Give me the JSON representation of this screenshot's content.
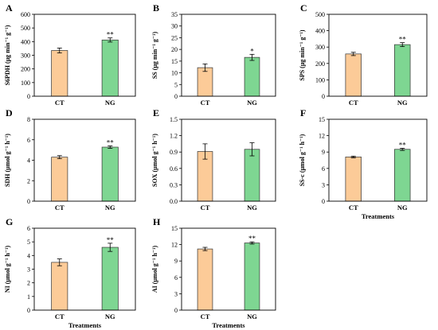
{
  "colors": {
    "CT": "#FCCB98",
    "NG": "#7ED692",
    "axis": "#000000"
  },
  "chart_data": [
    {
      "type": "bar",
      "label": "A",
      "ylabel": "S6PDH (μg min⁻¹ g⁻¹)",
      "xlabel": "",
      "categories": [
        "CT",
        "NG"
      ],
      "values": [
        335,
        412
      ],
      "errors": [
        18,
        15
      ],
      "significance": [
        "",
        "**"
      ],
      "ylim": [
        0,
        600
      ],
      "yticks": [
        0,
        100,
        200,
        300,
        400,
        500,
        600
      ],
      "ytick_labels": [
        "0",
        "100",
        "200",
        "300",
        "400",
        "500",
        "600"
      ]
    },
    {
      "type": "bar",
      "label": "B",
      "ylabel": "SS (μg min⁻¹ g⁻¹)",
      "xlabel": "",
      "categories": [
        "CT",
        "NG"
      ],
      "values": [
        12.2,
        16.6
      ],
      "errors": [
        1.6,
        1.3
      ],
      "significance": [
        "",
        "*"
      ],
      "ylim": [
        0,
        35
      ],
      "yticks": [
        0,
        5,
        10,
        15,
        20,
        25,
        30,
        35
      ],
      "ytick_labels": [
        "0",
        "5",
        "10",
        "15",
        "20",
        "25",
        "30",
        "35"
      ]
    },
    {
      "type": "bar",
      "label": "C",
      "ylabel": "SPS (μg min⁻¹ g⁻¹)",
      "xlabel": "",
      "categories": [
        "CT",
        "NG"
      ],
      "values": [
        258,
        315
      ],
      "errors": [
        10,
        12
      ],
      "significance": [
        "",
        "**"
      ],
      "ylim": [
        0,
        500
      ],
      "yticks": [
        0,
        100,
        200,
        300,
        400,
        500
      ],
      "ytick_labels": [
        "0",
        "100",
        "200",
        "300",
        "400",
        "500"
      ]
    },
    {
      "type": "bar",
      "label": "D",
      "ylabel": "SDH (μmol g⁻¹ h⁻¹)",
      "xlabel": "",
      "categories": [
        "CT",
        "NG"
      ],
      "values": [
        4.3,
        5.28
      ],
      "errors": [
        0.15,
        0.12
      ],
      "significance": [
        "",
        "**"
      ],
      "ylim": [
        0,
        8
      ],
      "yticks": [
        0,
        2,
        4,
        6,
        8
      ],
      "ytick_labels": [
        "0",
        "2",
        "4",
        "6",
        "8"
      ]
    },
    {
      "type": "bar",
      "label": "E",
      "ylabel": "SOX (μmol g⁻¹ h⁻¹)",
      "xlabel": "",
      "categories": [
        "CT",
        "NG"
      ],
      "values": [
        0.91,
        0.95
      ],
      "errors": [
        0.14,
        0.12
      ],
      "significance": [
        "",
        ""
      ],
      "ylim": [
        0,
        1.5
      ],
      "yticks": [
        0,
        0.3,
        0.6,
        0.9,
        1.2,
        1.5
      ],
      "ytick_labels": [
        "0.0",
        "0.3",
        "0.6",
        "0.9",
        "1.2",
        "1.5"
      ]
    },
    {
      "type": "bar",
      "label": "F",
      "ylabel": "SS-c (μmol g⁻¹ h⁻¹)",
      "xlabel": "Treatments",
      "categories": [
        "CT",
        "NG"
      ],
      "values": [
        8.1,
        9.5
      ],
      "errors": [
        0.15,
        0.2
      ],
      "significance": [
        "",
        "**"
      ],
      "ylim": [
        0,
        15
      ],
      "yticks": [
        0,
        3,
        6,
        9,
        12,
        15
      ],
      "ytick_labels": [
        "0",
        "3",
        "6",
        "9",
        "12",
        "15"
      ]
    },
    {
      "type": "bar",
      "label": "G",
      "ylabel": "NI (μmol g⁻¹ h⁻¹)",
      "xlabel": "Treatments",
      "categories": [
        "CT",
        "NG"
      ],
      "values": [
        3.5,
        4.6
      ],
      "errors": [
        0.25,
        0.3
      ],
      "significance": [
        "",
        "**"
      ],
      "ylim": [
        0,
        6
      ],
      "yticks": [
        0,
        1,
        2,
        3,
        4,
        5,
        6
      ],
      "ytick_labels": [
        "0",
        "1",
        "2",
        "3",
        "4",
        "5",
        "6"
      ]
    },
    {
      "type": "bar",
      "label": "H",
      "ylabel": "AI (μmol g⁻¹ h⁻¹)",
      "xlabel": "Treatments",
      "categories": [
        "CT",
        "NG"
      ],
      "values": [
        11.2,
        12.3
      ],
      "errors": [
        0.3,
        0.2
      ],
      "significance": [
        "",
        "**"
      ],
      "ylim": [
        0,
        15
      ],
      "yticks": [
        0,
        3,
        6,
        9,
        12,
        15
      ],
      "ytick_labels": [
        "0",
        "3",
        "6",
        "9",
        "12",
        "15"
      ]
    }
  ]
}
